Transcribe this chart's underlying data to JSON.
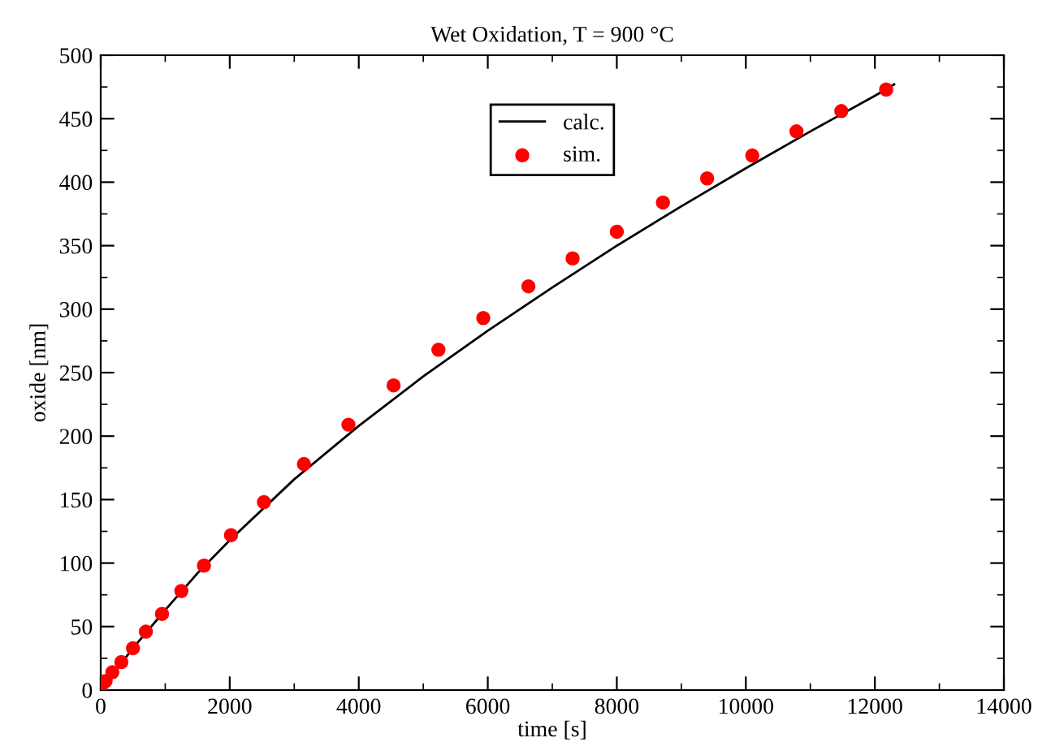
{
  "chart_data": {
    "type": "line",
    "title": "Wet Oxidation, T = 900 °C",
    "xlabel": "time [s]",
    "ylabel": "oxide [nm]",
    "xlim": [
      0,
      14000
    ],
    "xticks": [
      0,
      2000,
      4000,
      6000,
      8000,
      10000,
      12000,
      14000
    ],
    "ylim": [
      0,
      500
    ],
    "yticks": [
      0,
      50,
      100,
      150,
      200,
      250,
      300,
      350,
      400,
      450,
      500
    ],
    "grid": false,
    "legend": "top",
    "series": [
      {
        "name": "calc.",
        "color": "#000000",
        "marker": "none",
        "line_style": "solid",
        "x": [
          0,
          500,
          1000,
          1500,
          2000,
          3000,
          4000,
          5000,
          6000,
          7000,
          8000,
          9000,
          10000,
          11000,
          12000,
          12300
        ],
        "values": [
          0,
          33,
          63,
          92,
          118,
          166,
          208,
          247,
          283,
          317,
          350,
          381,
          411,
          440,
          468,
          477
        ]
      },
      {
        "name": "sim.",
        "type": "scatter",
        "color": "#ff0000",
        "marker": "circle",
        "x": [
          0,
          75,
          180,
          320,
          500,
          700,
          950,
          1250,
          1600,
          2020,
          2530,
          3150,
          3840,
          4540,
          5235,
          5930,
          6630,
          7315,
          8000,
          8715,
          9400,
          10100,
          10785,
          11480,
          12175
        ],
        "values": [
          0,
          7,
          14,
          22,
          33,
          46,
          60,
          78,
          98,
          122,
          148,
          178,
          209,
          240,
          268,
          293,
          318,
          340,
          361,
          384,
          403,
          421,
          440,
          456,
          473
        ]
      }
    ]
  }
}
